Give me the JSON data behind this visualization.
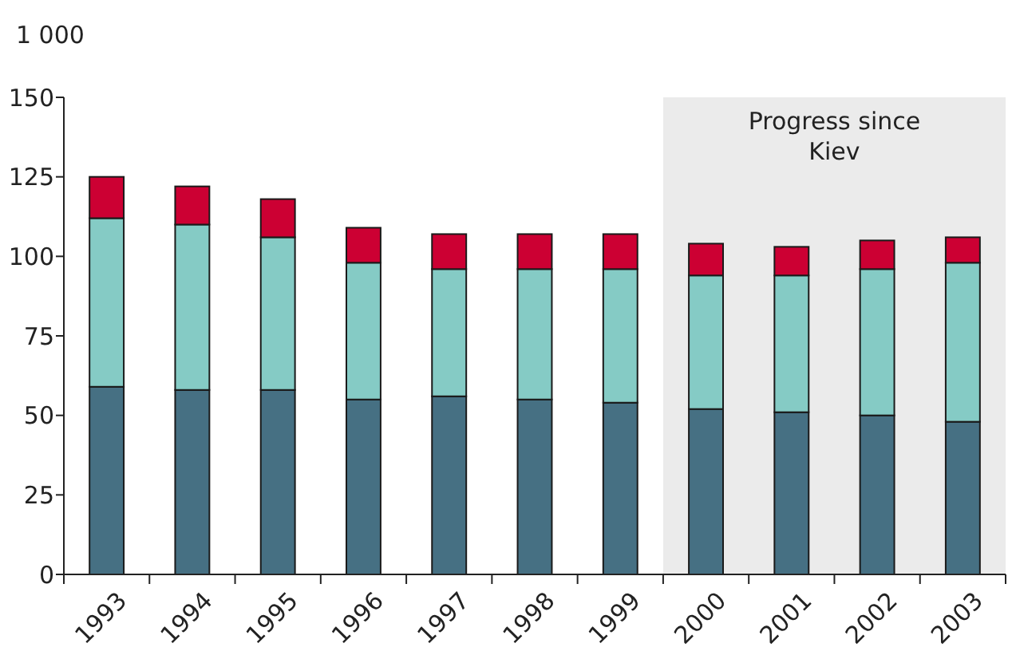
{
  "chart_data": {
    "type": "bar",
    "stacked": true,
    "ylabel": "1 000",
    "categories": [
      "1993",
      "1994",
      "1995",
      "1996",
      "1997",
      "1998",
      "1999",
      "2000",
      "2001",
      "2002",
      "2003"
    ],
    "series": [
      {
        "color": "#467083",
        "values": [
          59,
          58,
          58,
          55,
          56,
          55,
          54,
          52,
          51,
          50,
          48
        ]
      },
      {
        "color": "#85cbc5",
        "values": [
          53,
          52,
          48,
          43,
          40,
          41,
          42,
          42,
          43,
          46,
          50
        ]
      },
      {
        "color": "#cc0033",
        "values": [
          13,
          12,
          12,
          11,
          11,
          11,
          11,
          10,
          9,
          9,
          8
        ]
      }
    ],
    "ylim": [
      0,
      150
    ],
    "yticks": [
      0,
      25,
      50,
      75,
      100,
      125,
      150
    ],
    "bands": [
      {
        "axis": "x",
        "from": "2000",
        "to": "2003",
        "label": "Progress since Kiev",
        "color": "#ebebeb"
      }
    ],
    "grid": false
  }
}
